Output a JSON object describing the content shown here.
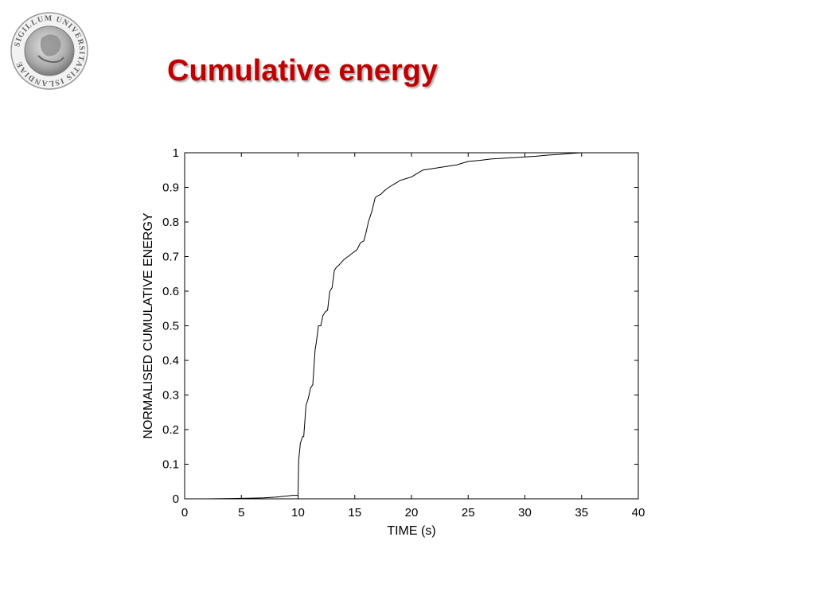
{
  "slide": {
    "title": "Cumulative energy",
    "seal_text": "SIGILLUM UNIVERSITATIS ISLANDIAE"
  },
  "colors": {
    "title": "#c00000",
    "curve": "#000000",
    "axes": "#000000"
  },
  "chart_data": {
    "type": "line",
    "xlabel": "TIME (s)",
    "ylabel": "NORMALISED  CUMULATIVE  ENERGY",
    "xlim": [
      0,
      40
    ],
    "ylim": [
      0,
      1
    ],
    "xticks": [
      0,
      5,
      10,
      15,
      20,
      25,
      30,
      35,
      40
    ],
    "yticks": [
      0,
      0.1,
      0.2,
      0.3,
      0.4,
      0.5,
      0.6,
      0.7,
      0.8,
      0.9,
      1
    ],
    "xtick_labels": [
      "0",
      "5",
      "10",
      "15",
      "20",
      "25",
      "30",
      "35",
      "40"
    ],
    "ytick_labels": [
      "0",
      "0.1",
      "0.2",
      "0.3",
      "0.4",
      "0.5",
      "0.6",
      "0.7",
      "0.8",
      "0.9",
      "1"
    ],
    "grid": false,
    "series": [
      {
        "x": [
          0,
          2,
          4,
          6,
          7,
          8,
          9,
          9.5,
          9.9,
          10.0,
          10.05,
          10.2,
          10.4,
          10.5,
          10.7,
          10.9,
          11.1,
          11.3,
          11.5,
          11.6,
          11.8,
          12.0,
          12.2,
          12.4,
          12.6,
          12.8,
          13.0,
          13.2,
          13.4,
          13.6,
          14.0,
          14.4,
          14.8,
          15.2,
          15.5,
          15.8,
          16.0,
          16.2,
          16.5,
          16.8,
          17.0,
          17.3,
          17.6,
          18.0,
          18.5,
          19.0,
          19.5,
          20.0,
          20.5,
          21.0,
          22.0,
          23.0,
          24.0,
          25.0,
          26.0,
          27.0,
          28.0,
          29.0,
          30.0,
          31.0,
          32.0,
          33.0,
          34.0,
          35.0
        ],
        "y": [
          0,
          0,
          0.001,
          0.002,
          0.003,
          0.005,
          0.008,
          0.01,
          0.01,
          0.01,
          0.11,
          0.16,
          0.18,
          0.18,
          0.27,
          0.29,
          0.32,
          0.33,
          0.43,
          0.45,
          0.5,
          0.5,
          0.53,
          0.54,
          0.545,
          0.6,
          0.61,
          0.66,
          0.67,
          0.675,
          0.69,
          0.7,
          0.71,
          0.72,
          0.74,
          0.745,
          0.77,
          0.8,
          0.83,
          0.87,
          0.875,
          0.88,
          0.89,
          0.9,
          0.91,
          0.92,
          0.925,
          0.93,
          0.94,
          0.95,
          0.955,
          0.96,
          0.965,
          0.975,
          0.978,
          0.982,
          0.984,
          0.986,
          0.988,
          0.99,
          0.993,
          0.995,
          0.998,
          1.0
        ]
      }
    ]
  }
}
